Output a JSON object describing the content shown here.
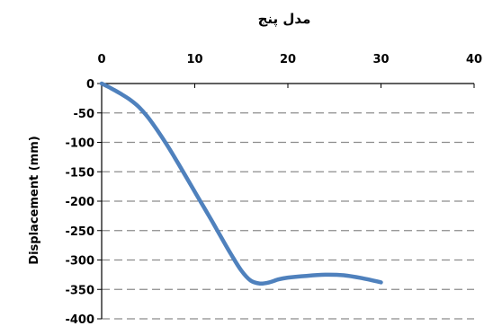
{
  "chart_data": {
    "type": "line",
    "title": "مدل پنج",
    "xlabel": "",
    "ylabel": "Displacement (mm)",
    "xlim": [
      0,
      40
    ],
    "ylim": [
      -400,
      0
    ],
    "x_ticks": [
      0,
      10,
      20,
      30,
      40
    ],
    "y_ticks": [
      0,
      -50,
      -100,
      -150,
      -200,
      -250,
      -300,
      -350,
      -400
    ],
    "x_axis_position": "top",
    "grid": "horizontal dashed",
    "legend": "none",
    "series": [
      {
        "color": "#4F81BD",
        "x": [
          0,
          1,
          2,
          3,
          4,
          5,
          6,
          7,
          8,
          9,
          10,
          11,
          12,
          13,
          14,
          15,
          16,
          17,
          18,
          19,
          20,
          22,
          24,
          26,
          28,
          30
        ],
        "y": [
          0,
          -8,
          -17,
          -27,
          -40,
          -58,
          -80,
          -104,
          -130,
          -157,
          -184,
          -211,
          -238,
          -266,
          -293,
          -318,
          -335,
          -340,
          -338,
          -333,
          -330,
          -327,
          -325,
          -326,
          -331,
          -338
        ]
      }
    ]
  }
}
